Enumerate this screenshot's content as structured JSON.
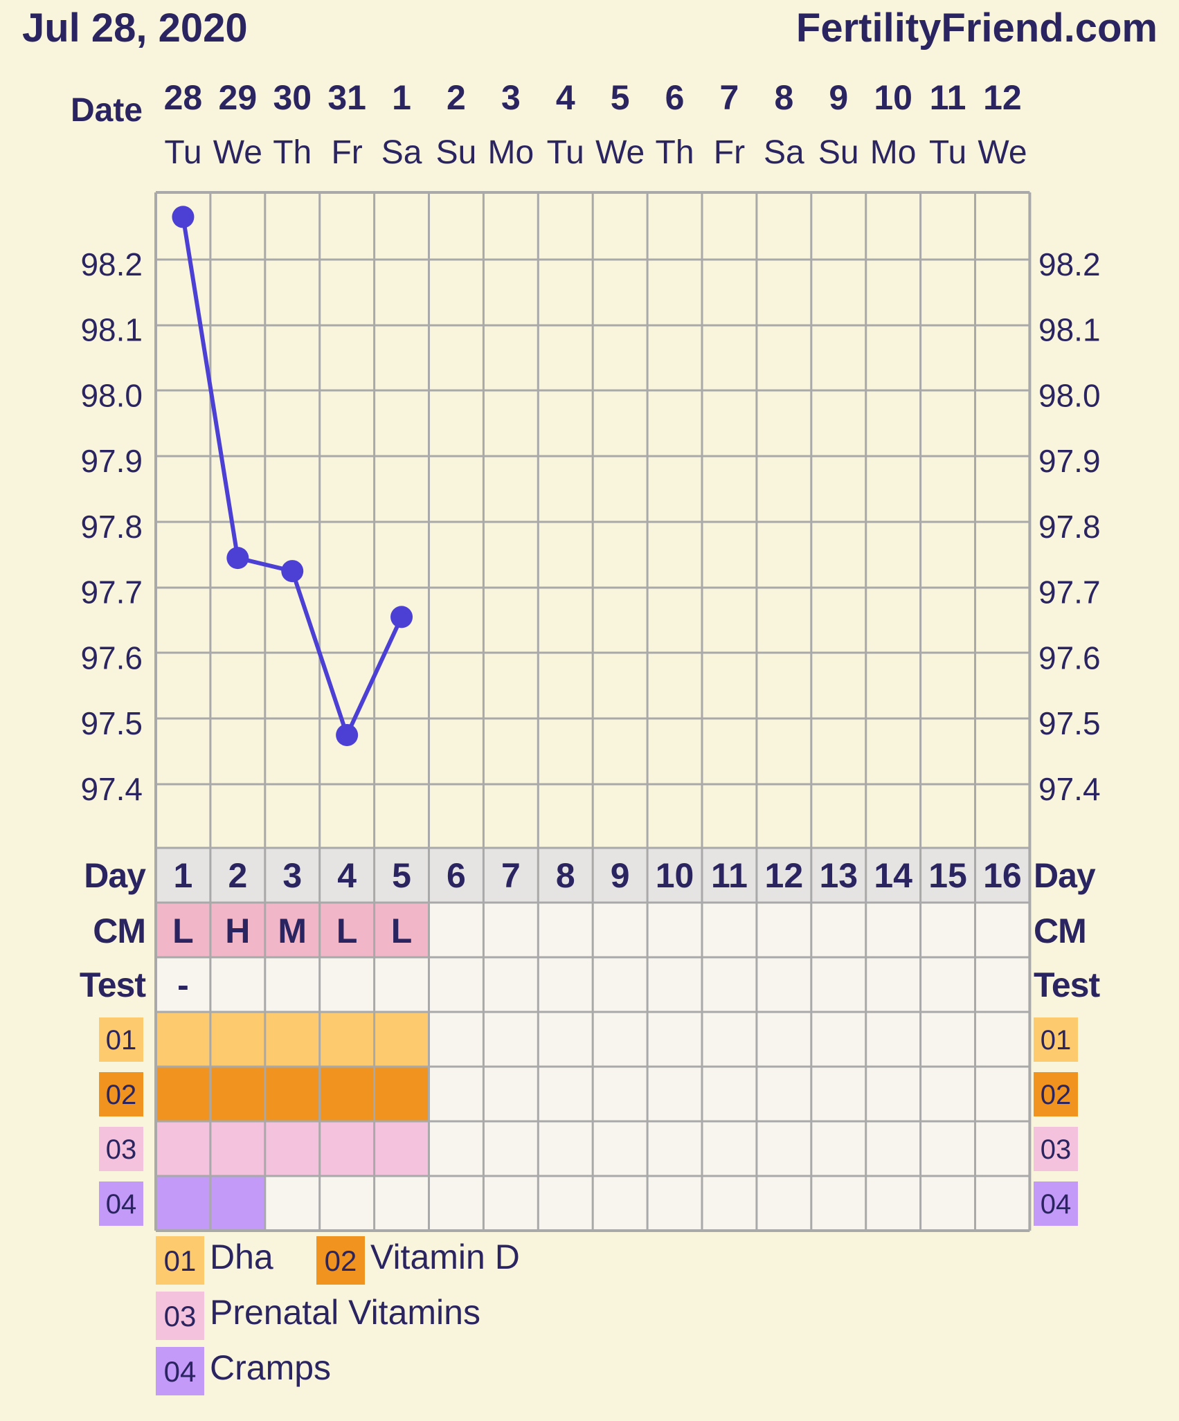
{
  "header": {
    "date": "Jul 28, 2020",
    "site": "FertilityFriend.com"
  },
  "labels": {
    "date": "Date",
    "day": "Day",
    "cm": "CM",
    "test": "Test"
  },
  "columns": {
    "dates": [
      "28",
      "29",
      "30",
      "31",
      "1",
      "2",
      "3",
      "4",
      "5",
      "6",
      "7",
      "8",
      "9",
      "10",
      "11",
      "12"
    ],
    "weekdays": [
      "Tu",
      "We",
      "Th",
      "Fr",
      "Sa",
      "Su",
      "Mo",
      "Tu",
      "We",
      "Th",
      "Fr",
      "Sa",
      "Su",
      "Mo",
      "Tu",
      "We"
    ],
    "days": [
      "1",
      "2",
      "3",
      "4",
      "5",
      "6",
      "7",
      "8",
      "9",
      "10",
      "11",
      "12",
      "13",
      "14",
      "15",
      "16"
    ]
  },
  "chart_data": {
    "type": "line",
    "x": [
      1,
      2,
      3,
      4,
      5
    ],
    "values": [
      98.27,
      97.75,
      97.73,
      97.48,
      97.66
    ],
    "yticks": [
      "98.2",
      "98.1",
      "98.0",
      "97.9",
      "97.8",
      "97.7",
      "97.6",
      "97.5",
      "97.4"
    ],
    "ylim": [
      97.31,
      98.31
    ],
    "xlim": [
      1,
      16
    ],
    "grid": true
  },
  "cm_row": [
    "L",
    "H",
    "M",
    "L",
    "L",
    "",
    "",
    "",
    "",
    "",
    "",
    "",
    "",
    "",
    "",
    ""
  ],
  "test_row": [
    "-",
    "",
    "",
    "",
    "",
    "",
    "",
    "",
    "",
    "",
    "",
    "",
    "",
    "",
    "",
    ""
  ],
  "extras": [
    {
      "code": "01",
      "name": "Dha",
      "color": "#fdcb6e",
      "days": [
        1,
        2,
        3,
        4,
        5
      ]
    },
    {
      "code": "02",
      "name": "Vitamin D",
      "color": "#f0931f",
      "days": [
        1,
        2,
        3,
        4,
        5
      ]
    },
    {
      "code": "03",
      "name": "Prenatal Vitamins",
      "color": "#f4c2dd",
      "days": [
        1,
        2,
        3,
        4,
        5
      ]
    },
    {
      "code": "04",
      "name": "Cramps",
      "color": "#c39af8",
      "days": [
        1,
        2
      ]
    }
  ],
  "colors": {
    "background": "#f9f4dc",
    "text": "#2a2560",
    "line": "#4b3fd4",
    "grid": "#a9a9a9",
    "day_row": "#e6e4e2",
    "cm_fill": "#f2b6c9",
    "empty_cell": "#f7f5ee"
  }
}
